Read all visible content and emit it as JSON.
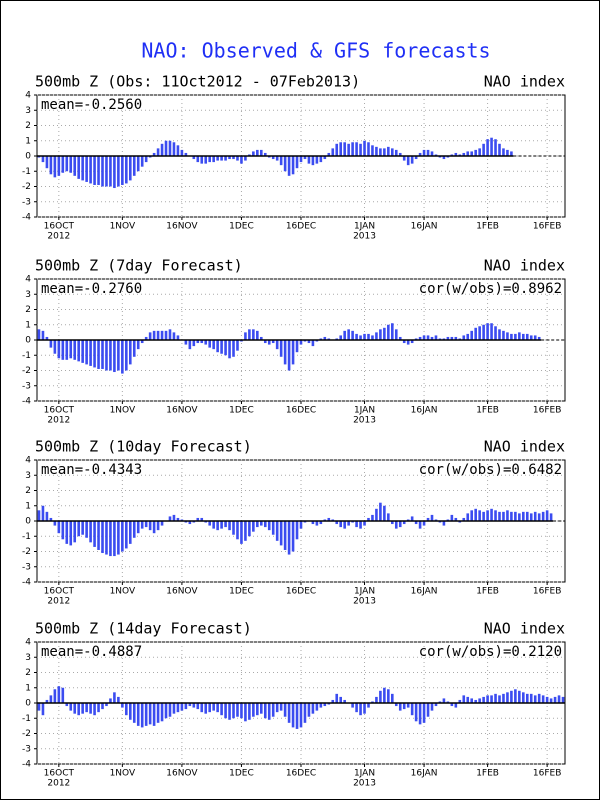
{
  "title": "NAO: Observed & GFS forecasts",
  "chart_data": [
    {
      "type": "bar",
      "title": "500mb Z (Obs: 11Oct2012 - 07Feb2013)",
      "subtitle": "NAO index",
      "annotations": [
        "mean=-0.2560"
      ],
      "color": "#3b4cf0",
      "grid": true,
      "xlim": [
        -0.5,
        132.5
      ],
      "xticks": [
        {
          "value": 5,
          "label": "16OCT"
        },
        {
          "value": 21,
          "label": "1NOV"
        },
        {
          "value": 36,
          "label": "16NOV"
        },
        {
          "value": 51,
          "label": "1DEC"
        },
        {
          "value": 66,
          "label": "16DEC"
        },
        {
          "value": 82,
          "label": "1JAN"
        },
        {
          "value": 97,
          "label": "16JAN"
        },
        {
          "value": 113,
          "label": "1FEB"
        },
        {
          "value": 128,
          "label": "16FEB"
        }
      ],
      "xyears": [
        {
          "value": 5,
          "label": "2012"
        },
        {
          "value": 82,
          "label": "2013"
        }
      ],
      "ylim": [
        -4,
        4
      ],
      "yticks": [
        -4,
        -3,
        -2,
        -1,
        0,
        1,
        2,
        3,
        4
      ],
      "values": [
        -0.1,
        -0.4,
        -0.8,
        -1.2,
        -1.4,
        -1.3,
        -1.1,
        -1.0,
        -1.1,
        -1.3,
        -1.5,
        -1.6,
        -1.7,
        -1.8,
        -1.9,
        -1.9,
        -2.0,
        -2.0,
        -2.0,
        -2.1,
        -2.0,
        -1.9,
        -1.8,
        -1.6,
        -1.3,
        -1.0,
        -0.7,
        -0.4,
        -0.1,
        0.2,
        0.5,
        0.8,
        1.0,
        1.0,
        0.9,
        0.7,
        0.4,
        0.2,
        0.0,
        -0.2,
        -0.4,
        -0.5,
        -0.5,
        -0.4,
        -0.4,
        -0.3,
        -0.3,
        -0.3,
        -0.2,
        -0.2,
        -0.3,
        -0.5,
        -0.3,
        0.1,
        0.3,
        0.4,
        0.4,
        0.2,
        -0.1,
        -0.2,
        -0.3,
        -0.6,
        -1.0,
        -1.3,
        -1.2,
        -0.8,
        -0.4,
        -0.2,
        -0.5,
        -0.6,
        -0.5,
        -0.4,
        -0.2,
        0.2,
        0.5,
        0.8,
        0.9,
        0.9,
        0.8,
        0.9,
        0.9,
        0.8,
        1.0,
        0.9,
        0.7,
        0.6,
        0.5,
        0.5,
        0.6,
        0.5,
        0.4,
        0.2,
        -0.3,
        -0.6,
        -0.5,
        -0.2,
        0.2,
        0.4,
        0.4,
        0.3,
        0.1,
        -0.1,
        -0.2,
        -0.1,
        0.1,
        0.2,
        0.1,
        0.2,
        0.3,
        0.3,
        0.4,
        0.5,
        0.8,
        1.1,
        1.2,
        1.1,
        0.8,
        0.5,
        0.4,
        0.3
      ]
    },
    {
      "type": "bar",
      "title": "500mb Z (7day Forecast)",
      "subtitle": "NAO index",
      "annotations": [
        "mean=-0.2760",
        "cor(w/obs)=0.8962"
      ],
      "color": "#3b4cf0",
      "grid": true,
      "xlim": [
        -0.5,
        132.5
      ],
      "xticks": [
        {
          "value": 5,
          "label": "16OCT"
        },
        {
          "value": 21,
          "label": "1NOV"
        },
        {
          "value": 36,
          "label": "16NOV"
        },
        {
          "value": 51,
          "label": "1DEC"
        },
        {
          "value": 66,
          "label": "16DEC"
        },
        {
          "value": 82,
          "label": "1JAN"
        },
        {
          "value": 97,
          "label": "16JAN"
        },
        {
          "value": 113,
          "label": "1FEB"
        },
        {
          "value": 128,
          "label": "16FEB"
        }
      ],
      "xyears": [
        {
          "value": 5,
          "label": "2012"
        },
        {
          "value": 82,
          "label": "2013"
        }
      ],
      "ylim": [
        -4,
        4
      ],
      "yticks": [
        -4,
        -3,
        -2,
        -1,
        0,
        1,
        2,
        3,
        4
      ],
      "values": [
        0.7,
        0.6,
        0.2,
        -0.5,
        -0.9,
        -1.2,
        -1.3,
        -1.3,
        -1.2,
        -1.3,
        -1.4,
        -1.5,
        -1.6,
        -1.7,
        -1.8,
        -1.9,
        -1.9,
        -2.0,
        -2.0,
        -2.1,
        -2.0,
        -2.2,
        -2.0,
        -1.6,
        -1.1,
        -0.6,
        -0.2,
        0.2,
        0.5,
        0.6,
        0.6,
        0.6,
        0.6,
        0.7,
        0.5,
        0.3,
        0.0,
        -0.3,
        -0.6,
        -0.4,
        -0.2,
        -0.2,
        -0.3,
        -0.5,
        -0.6,
        -0.8,
        -0.9,
        -1.0,
        -1.2,
        -1.1,
        -0.7,
        -0.1,
        0.5,
        0.7,
        0.7,
        0.6,
        0.2,
        -0.2,
        -0.3,
        -0.2,
        -0.6,
        -1.1,
        -1.6,
        -2.0,
        -1.6,
        -0.8,
        -0.3,
        -0.1,
        -0.2,
        -0.4,
        -0.1,
        0.1,
        0.2,
        0.1,
        0.0,
        0.1,
        0.3,
        0.6,
        0.7,
        0.6,
        0.4,
        0.3,
        0.4,
        0.4,
        0.3,
        0.5,
        0.7,
        0.8,
        1.0,
        1.1,
        0.7,
        0.2,
        -0.2,
        -0.3,
        -0.2,
        0.1,
        0.2,
        0.3,
        0.3,
        0.2,
        0.3,
        0.1,
        0.1,
        0.2,
        0.2,
        0.2,
        0.1,
        0.3,
        0.4,
        0.6,
        0.8,
        0.9,
        1.0,
        1.1,
        1.1,
        0.9,
        0.7,
        0.6,
        0.5,
        0.4,
        0.4,
        0.5,
        0.4,
        0.4,
        0.3,
        0.3,
        0.2
      ]
    },
    {
      "type": "bar",
      "title": "500mb Z (10day Forecast)",
      "subtitle": "NAO index",
      "annotations": [
        "mean=-0.4343",
        "cor(w/obs)=0.6482"
      ],
      "color": "#3b4cf0",
      "grid": true,
      "xlim": [
        -0.5,
        132.5
      ],
      "xticks": [
        {
          "value": 5,
          "label": "16OCT"
        },
        {
          "value": 21,
          "label": "1NOV"
        },
        {
          "value": 36,
          "label": "16NOV"
        },
        {
          "value": 51,
          "label": "1DEC"
        },
        {
          "value": 66,
          "label": "16DEC"
        },
        {
          "value": 82,
          "label": "1JAN"
        },
        {
          "value": 97,
          "label": "16JAN"
        },
        {
          "value": 113,
          "label": "1FEB"
        },
        {
          "value": 128,
          "label": "16FEB"
        }
      ],
      "xyears": [
        {
          "value": 5,
          "label": "2012"
        },
        {
          "value": 82,
          "label": "2013"
        }
      ],
      "ylim": [
        -4,
        4
      ],
      "yticks": [
        -4,
        -3,
        -2,
        -1,
        0,
        1,
        2,
        3,
        4
      ],
      "values": [
        0.7,
        1.0,
        0.6,
        0.2,
        -0.3,
        -0.8,
        -1.2,
        -1.5,
        -1.6,
        -1.4,
        -1.0,
        -0.9,
        -1.1,
        -1.4,
        -1.7,
        -1.9,
        -2.1,
        -2.2,
        -2.3,
        -2.3,
        -2.2,
        -2.0,
        -1.8,
        -1.5,
        -1.1,
        -0.8,
        -0.5,
        -0.4,
        -0.6,
        -0.8,
        -0.6,
        -0.3,
        0.0,
        0.3,
        0.4,
        0.2,
        0.1,
        -0.1,
        -0.2,
        -0.1,
        0.2,
        0.2,
        -0.1,
        -0.3,
        -0.5,
        -0.6,
        -0.5,
        -0.4,
        -0.6,
        -0.9,
        -1.2,
        -1.5,
        -1.3,
        -1.0,
        -0.7,
        -0.4,
        -0.3,
        -0.4,
        -0.6,
        -0.9,
        -1.3,
        -1.6,
        -1.9,
        -2.2,
        -2.0,
        -1.2,
        -0.5,
        -0.1,
        0.0,
        -0.2,
        -0.3,
        -0.2,
        0.1,
        0.2,
        0.1,
        -0.2,
        -0.4,
        -0.5,
        -0.3,
        -0.1,
        -0.4,
        -0.5,
        -0.3,
        0.2,
        0.4,
        0.8,
        1.2,
        1.0,
        0.5,
        -0.2,
        -0.5,
        -0.4,
        -0.2,
        0.1,
        0.3,
        -0.2,
        -0.5,
        -0.3,
        0.2,
        0.4,
        0.1,
        -0.1,
        -0.3,
        0.1,
        0.4,
        0.2,
        -0.1,
        0.2,
        0.5,
        0.7,
        0.8,
        0.7,
        0.6,
        0.7,
        0.8,
        0.7,
        0.6,
        0.6,
        0.7,
        0.6,
        0.6,
        0.5,
        0.6,
        0.6,
        0.5,
        0.6,
        0.5,
        0.6,
        0.7,
        0.5
      ]
    },
    {
      "type": "bar",
      "title": "500mb Z (14day Forecast)",
      "subtitle": "NAO index",
      "annotations": [
        "mean=-0.4887",
        "cor(w/obs)=0.2120"
      ],
      "color": "#3b4cf0",
      "grid": true,
      "xlim": [
        -0.5,
        132.5
      ],
      "xticks": [
        {
          "value": 5,
          "label": "16OCT"
        },
        {
          "value": 21,
          "label": "1NOV"
        },
        {
          "value": 36,
          "label": "16NOV"
        },
        {
          "value": 51,
          "label": "1DEC"
        },
        {
          "value": 66,
          "label": "16DEC"
        },
        {
          "value": 82,
          "label": "1JAN"
        },
        {
          "value": 97,
          "label": "16JAN"
        },
        {
          "value": 113,
          "label": "1FEB"
        },
        {
          "value": 128,
          "label": "16FEB"
        }
      ],
      "xyears": [
        {
          "value": 5,
          "label": "2012"
        },
        {
          "value": 82,
          "label": "2013"
        }
      ],
      "ylim": [
        -4,
        4
      ],
      "yticks": [
        -4,
        -3,
        -2,
        -1,
        0,
        1,
        2,
        3,
        4
      ],
      "values": [
        -0.5,
        -0.8,
        0.2,
        0.5,
        0.9,
        1.1,
        1.0,
        -0.2,
        -0.5,
        -0.7,
        -0.8,
        -0.7,
        -0.6,
        -0.7,
        -0.8,
        -0.6,
        -0.4,
        -0.2,
        0.3,
        0.7,
        0.4,
        -0.3,
        -0.8,
        -1.1,
        -1.3,
        -1.5,
        -1.6,
        -1.5,
        -1.4,
        -1.5,
        -1.3,
        -1.2,
        -1.0,
        -0.9,
        -0.7,
        -0.6,
        -0.5,
        -0.4,
        -0.2,
        -0.3,
        -0.4,
        -0.6,
        -0.7,
        -0.6,
        -0.5,
        -0.6,
        -0.8,
        -1.0,
        -1.1,
        -1.0,
        -0.9,
        -1.0,
        -1.2,
        -1.1,
        -0.9,
        -0.8,
        -0.7,
        -1.0,
        -1.1,
        -0.9,
        -0.6,
        -0.5,
        -0.9,
        -1.3,
        -1.6,
        -1.7,
        -1.6,
        -1.3,
        -0.9,
        -0.7,
        -0.5,
        -0.3,
        -0.2,
        -0.1,
        0.2,
        0.6,
        0.4,
        0.2,
        0.0,
        -0.3,
        -0.6,
        -0.8,
        -0.7,
        -0.3,
        0.1,
        0.4,
        0.8,
        1.0,
        0.9,
        0.6,
        -0.2,
        -0.5,
        -0.4,
        -0.3,
        -0.8,
        -1.2,
        -1.4,
        -1.3,
        -0.9,
        -0.5,
        -0.2,
        0.1,
        0.3,
        0.1,
        -0.2,
        -0.3,
        0.2,
        0.5,
        0.4,
        0.3,
        0.2,
        0.3,
        0.4,
        0.5,
        0.5,
        0.6,
        0.5,
        0.6,
        0.7,
        0.8,
        0.9,
        0.8,
        0.7,
        0.6,
        0.6,
        0.5,
        0.6,
        0.5,
        0.4,
        0.3,
        0.4,
        0.5,
        0.4
      ]
    }
  ]
}
